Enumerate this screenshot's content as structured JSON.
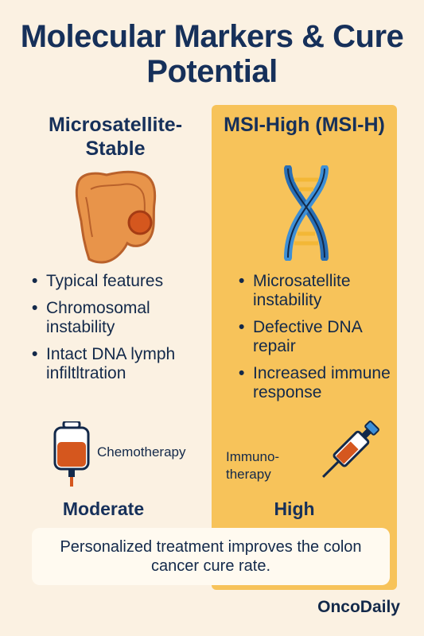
{
  "title": "Molecular Markers & Cure Potential",
  "left": {
    "heading": "Microsatellite-Stable",
    "bullets": [
      "Typical features",
      "Chromosomal instability",
      "Intact DNA lymph infiltltration"
    ],
    "treatment": "Chemotherapy",
    "cure_potential": "Moderate",
    "illustration_icon": "colon-icon",
    "treatment_icon": "iv-bag-icon"
  },
  "right": {
    "heading": "MSI-High (MSI-H)",
    "bullets": [
      "Microsatellite instability",
      "Defective DNA repair",
      "Increased immune response"
    ],
    "treatment": "Immuno-therapy",
    "cure_potential": "High",
    "illustration_icon": "dna-icon",
    "treatment_icon": "syringe-icon"
  },
  "footer": "Personalized treatment improves the colon cancer cure rate.",
  "brand": "OncoDaily",
  "colors": {
    "background": "#fbf1e2",
    "panel": "#f7c35a",
    "text": "#16305a",
    "colon": "#e8944a",
    "dna": "#3d8fd6"
  }
}
